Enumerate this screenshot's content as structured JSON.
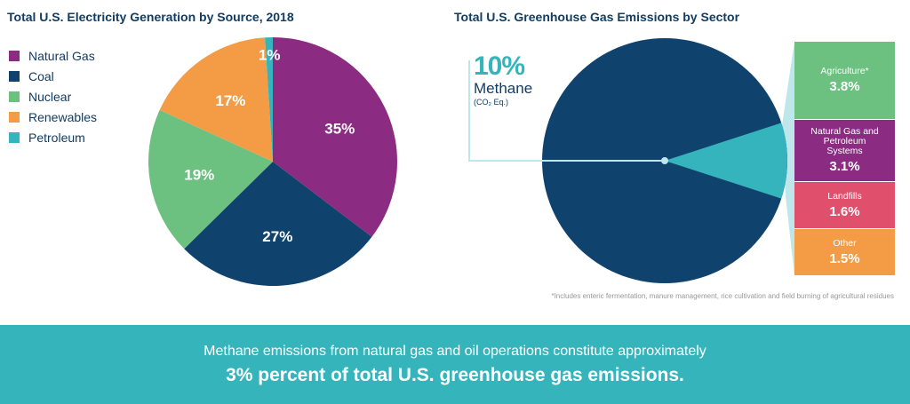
{
  "colors": {
    "natural_gas": "#8b2c82",
    "coal": "#0f436e",
    "nuclear": "#6cc180",
    "renewables": "#f39c45",
    "petroleum": "#36b4bd",
    "landfills": "#e0506d",
    "methane_connector": "#bfe6ea"
  },
  "chart_data": [
    {
      "type": "pie",
      "title": "Total U.S. Electricity Generation by Source, 2018",
      "legend_position": "left",
      "categories": [
        "Natural Gas",
        "Coal",
        "Nuclear",
        "Renewables",
        "Petroleum"
      ],
      "values": [
        35,
        27,
        19,
        17,
        1
      ],
      "data_labels": [
        "35%",
        "27%",
        "19%",
        "17%",
        "1%"
      ]
    },
    {
      "type": "pie",
      "title": "Total U.S. Greenhouse Gas Emissions by Sector",
      "highlight": {
        "label": "10%",
        "name": "Methane",
        "unit": "(CO₂ Eq.)",
        "value": 10
      },
      "methane_breakdown": [
        {
          "label": "Agriculture*",
          "value": "3.8%"
        },
        {
          "label": "Natural Gas and Petroleum Systems",
          "value": "3.1%"
        },
        {
          "label": "Landfills",
          "value": "1.6%"
        },
        {
          "label": "Other",
          "value": "1.5%"
        }
      ],
      "footnote": "*Includes enteric fermentation, manure management, rice cultivation and field burning of agricultural residues"
    }
  ],
  "banner": {
    "line1": "Methane emissions from natural gas and oil operations constitute approximately",
    "line2": "3% percent of total U.S. greenhouse gas emissions."
  }
}
